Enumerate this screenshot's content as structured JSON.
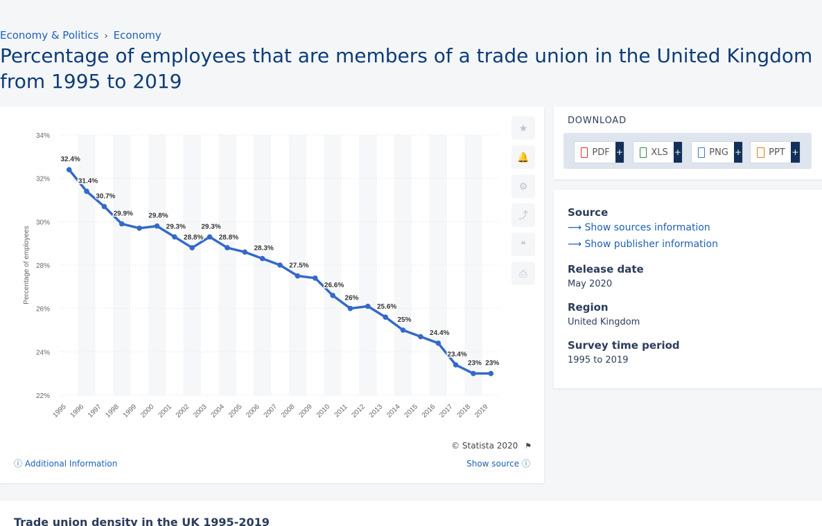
{
  "breadcrumb": {
    "item1": "Economy & Politics",
    "separator": "›",
    "item2": "Economy"
  },
  "page_title": "Percentage of employees that are members of a trade union in the United Kingdom from 1995 to 2019",
  "tools": {
    "star": "★",
    "bell": "🔔",
    "gear": "⚙",
    "share": "⤴",
    "quote": "❝",
    "print": "⎙"
  },
  "chart_footer": {
    "credit": "© Statista 2020",
    "additional_info": "Additional Information",
    "show_source": "Show source"
  },
  "download": {
    "title": "DOWNLOAD",
    "buttons": [
      {
        "label": "PDF",
        "color": "#d0332b"
      },
      {
        "label": "XLS",
        "color": "#2e8b3e"
      },
      {
        "label": "PNG",
        "color": "#3a78c4"
      },
      {
        "label": "PPT",
        "color": "#e07a1f"
      }
    ],
    "plus": "+"
  },
  "meta": {
    "source_heading": "Source",
    "show_sources": "Show sources information",
    "show_publisher": "Show publisher information",
    "release_heading": "Release date",
    "release_value": "May 2020",
    "region_heading": "Region",
    "region_value": "United Kingdom",
    "survey_heading": "Survey time period",
    "survey_value": "1995 to 2019"
  },
  "bottom_title": "Trade union density in the UK 1995-2019",
  "chart_data": {
    "type": "line",
    "x": [
      "1995",
      "1996",
      "1997",
      "1998",
      "1999",
      "2000",
      "2001",
      "2002",
      "2003",
      "2004",
      "2005",
      "2006",
      "2007",
      "2008",
      "2009",
      "2010",
      "2011",
      "2012",
      "2013",
      "2014",
      "2015",
      "2016",
      "2017",
      "2018",
      "2019"
    ],
    "values": [
      32.4,
      31.4,
      30.7,
      29.9,
      29.7,
      29.8,
      29.3,
      28.8,
      29.3,
      28.8,
      28.6,
      28.3,
      28.0,
      27.5,
      27.4,
      26.6,
      26.0,
      26.1,
      25.6,
      25.0,
      24.7,
      24.4,
      23.4,
      23.0,
      23.0
    ],
    "data_labels": [
      "32.4%",
      "31.4%",
      "30.7%",
      "29.9%",
      "",
      "29.8%",
      "29.3%",
      "28.8%",
      "29.3%",
      "28.8%",
      "",
      "28.3%",
      "",
      "27.5%",
      "",
      "26.6%",
      "26%",
      "",
      "25.6%",
      "25%",
      "",
      "24.4%",
      "23.4%",
      "23%",
      "23%"
    ],
    "ylabel": "Percentage of employees",
    "ylim": [
      22,
      34
    ],
    "yticks": [
      "22%",
      "24%",
      "26%",
      "28%",
      "30%",
      "32%",
      "34%"
    ],
    "series_color": "#3469c8",
    "grid": true,
    "legend": "none"
  }
}
